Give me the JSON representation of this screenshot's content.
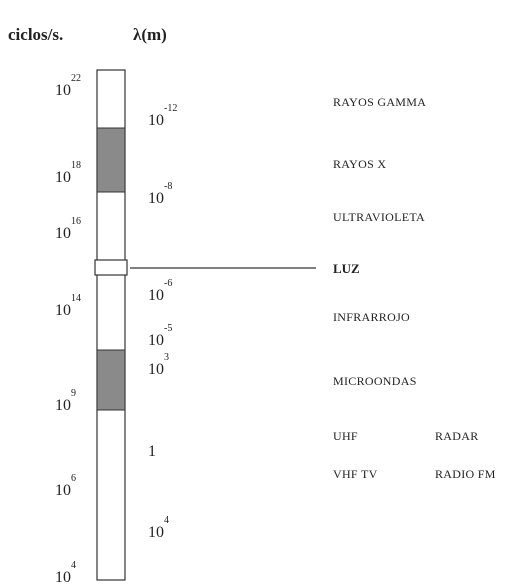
{
  "header": {
    "frequency_label": "ciclos/s.",
    "wavelength_label": "λ(m)"
  },
  "frequencies": [
    {
      "base": "10",
      "exp": "22"
    },
    {
      "base": "10",
      "exp": "18"
    },
    {
      "base": "10",
      "exp": "16"
    },
    {
      "base": "10",
      "exp": "14"
    },
    {
      "base": "10",
      "exp": "9"
    },
    {
      "base": "10",
      "exp": "6"
    },
    {
      "base": "10",
      "exp": "4"
    }
  ],
  "wavelengths": [
    {
      "base": "10",
      "exp": "-12"
    },
    {
      "base": "10",
      "exp": "-8"
    },
    {
      "base": "10",
      "exp": "-6"
    },
    {
      "base": "10",
      "exp": "-5"
    },
    {
      "base": "10",
      "exp": "3"
    },
    {
      "base": "1"
    },
    {
      "base": "10",
      "exp": "4"
    }
  ],
  "regions": [
    "RAYOS GAMMA",
    "RAYOS X",
    "ULTRAVIOLETA",
    "LUZ",
    "INFRARROJO",
    "MICROONDAS",
    "UHF",
    "RADAR",
    "VHF TV",
    "RADIO FM"
  ]
}
